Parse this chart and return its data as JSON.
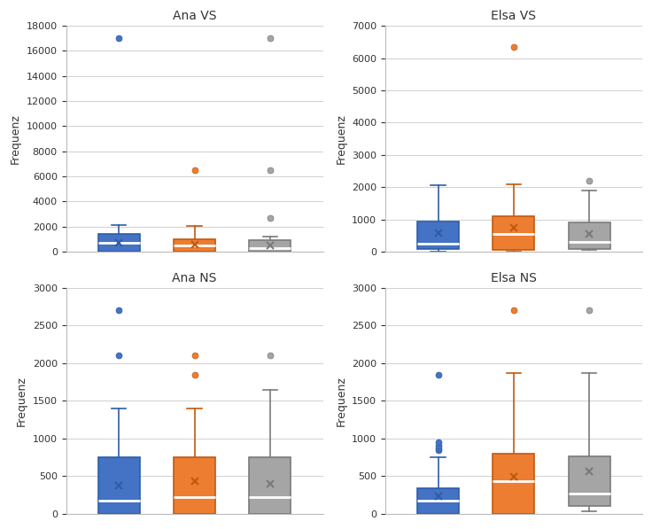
{
  "titles": [
    "Ana VS",
    "Elsa VS",
    "Ana NS",
    "Elsa NS"
  ],
  "ylabel": "Frequenz",
  "box_colors": [
    "#4472C4",
    "#ED7D31",
    "#A5A5A5"
  ],
  "panels": {
    "Ana VS": {
      "blue": {
        "q1": 0,
        "median": 700,
        "q3": 1450,
        "whislo": 0,
        "whishi": 2100,
        "mean": 700,
        "fliers": [
          17000
        ]
      },
      "orange": {
        "q1": 0,
        "median": 500,
        "q3": 1000,
        "whislo": 0,
        "whishi": 2050,
        "mean": 580,
        "fliers": [
          6500
        ]
      },
      "gray": {
        "q1": 0,
        "median": 300,
        "q3": 900,
        "whislo": 0,
        "whishi": 1200,
        "mean": 480,
        "fliers": [
          17000,
          6500,
          2700
        ]
      }
    },
    "Elsa VS": {
      "blue": {
        "q1": 100,
        "median": 250,
        "q3": 950,
        "whislo": 0,
        "whishi": 2050,
        "mean": 580,
        "fliers": []
      },
      "orange": {
        "q1": 50,
        "median": 550,
        "q3": 1100,
        "whislo": 0,
        "whishi": 2100,
        "mean": 750,
        "fliers": [
          6350
        ]
      },
      "gray": {
        "q1": 80,
        "median": 300,
        "q3": 900,
        "whislo": 50,
        "whishi": 1900,
        "mean": 540,
        "fliers": [
          2200
        ]
      }
    },
    "Ana NS": {
      "blue": {
        "q1": 0,
        "median": 180,
        "q3": 750,
        "whislo": 0,
        "whishi": 1400,
        "mean": 380,
        "fliers": [
          2700,
          2100
        ]
      },
      "orange": {
        "q1": 0,
        "median": 220,
        "q3": 750,
        "whislo": 0,
        "whishi": 1400,
        "mean": 430,
        "fliers": [
          2100,
          1850
        ]
      },
      "gray": {
        "q1": 0,
        "median": 220,
        "q3": 750,
        "whislo": 0,
        "whishi": 1650,
        "mean": 400,
        "fliers": [
          2100
        ]
      }
    },
    "Elsa NS": {
      "blue": {
        "q1": 0,
        "median": 170,
        "q3": 340,
        "whislo": 0,
        "whishi": 750,
        "mean": 230,
        "fliers": [
          850,
          870,
          900,
          950,
          1850
        ]
      },
      "orange": {
        "q1": 0,
        "median": 430,
        "q3": 800,
        "whislo": 0,
        "whishi": 1870,
        "mean": 490,
        "fliers": [
          2700
        ]
      },
      "gray": {
        "q1": 100,
        "median": 270,
        "q3": 760,
        "whislo": 30,
        "whishi": 1870,
        "mean": 560,
        "fliers": [
          2700
        ]
      }
    }
  },
  "ylims": {
    "Ana VS": [
      0,
      18000
    ],
    "Elsa VS": [
      0,
      7000
    ],
    "Ana NS": [
      0,
      3000
    ],
    "Elsa NS": [
      0,
      3000
    ]
  },
  "yticks": {
    "Ana VS": [
      0,
      2000,
      4000,
      6000,
      8000,
      10000,
      12000,
      14000,
      16000,
      18000
    ],
    "Elsa VS": [
      0,
      1000,
      2000,
      3000,
      4000,
      5000,
      6000,
      7000
    ],
    "Ana NS": [
      0,
      500,
      1000,
      1500,
      2000,
      2500,
      3000
    ],
    "Elsa NS": [
      0,
      500,
      1000,
      1500,
      2000,
      2500,
      3000
    ]
  }
}
